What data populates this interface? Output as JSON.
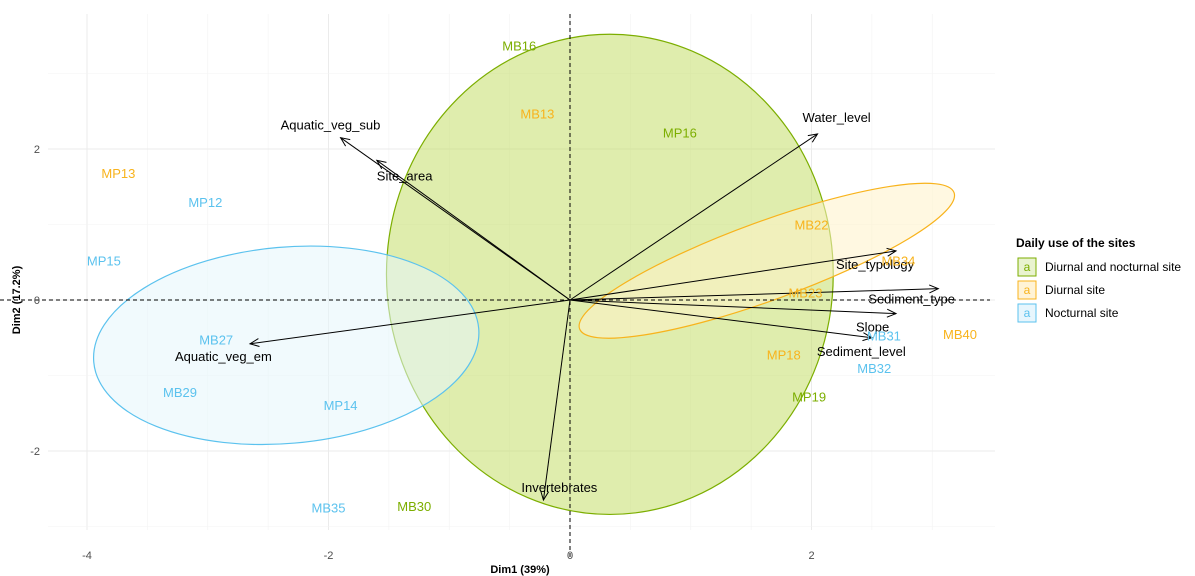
{
  "chart_data": {
    "type": "scatter",
    "subtype": "pca-biplot",
    "xlabel": "Dim1 (39%)",
    "ylabel": "Dim2 (17.2%)",
    "xlim": [
      -4.7,
      3.5
    ],
    "ylim": [
      -3.2,
      3.8
    ],
    "xticks": [
      -4,
      -2,
      0,
      2
    ],
    "yticks": [
      -2,
      0,
      2
    ],
    "grid": true,
    "legend": {
      "title": "Daily use of the sites",
      "placement": "right",
      "entries": [
        {
          "key": "a",
          "label": "Diurnal and nocturnal site",
          "color": "#7cae00"
        },
        {
          "key": "a",
          "label": "Diurnal site",
          "color": "#f8b31c"
        },
        {
          "key": "a",
          "label": "Nocturnal site",
          "color": "#5bc2ee"
        }
      ]
    },
    "groups": [
      {
        "label": "Diurnal and nocturnal site",
        "color": "#7cae00",
        "fill": "#c5de6a",
        "ellipse": {
          "cx": 0.33,
          "cy": 0.34,
          "rx": 1.85,
          "ry": 3.18,
          "angle": 0
        },
        "points": [
          {
            "name": "MB16",
            "x": -0.42,
            "y": 3.37
          },
          {
            "name": "MP16",
            "x": 0.91,
            "y": 2.22
          },
          {
            "name": "MP19",
            "x": 1.98,
            "y": -1.28
          },
          {
            "name": "MB30",
            "x": -1.29,
            "y": -2.73
          }
        ]
      },
      {
        "label": "Diurnal site",
        "color": "#f8b31c",
        "fill": "#fff3c8",
        "ellipse": {
          "cx": 1.63,
          "cy": 0.52,
          "rx": 1.65,
          "ry": 0.52,
          "angle": -20
        },
        "points": [
          {
            "name": "MB13",
            "x": -0.27,
            "y": 2.47
          },
          {
            "name": "MP13",
            "x": -3.74,
            "y": 1.68
          },
          {
            "name": "MB22",
            "x": 2.0,
            "y": 1.0
          },
          {
            "name": "MB23",
            "x": 1.95,
            "y": 0.1
          },
          {
            "name": "MB34",
            "x": 2.72,
            "y": 0.52
          },
          {
            "name": "MB40",
            "x": 3.23,
            "y": -0.45
          },
          {
            "name": "MP18",
            "x": 1.77,
            "y": -0.72
          }
        ]
      },
      {
        "label": "Nocturnal site",
        "color": "#5bc2ee",
        "fill": "#e6f5fc",
        "ellipse": {
          "cx": -2.35,
          "cy": -0.6,
          "rx": 1.6,
          "ry": 1.3,
          "angle": -5
        },
        "points": [
          {
            "name": "MP12",
            "x": -3.02,
            "y": 1.3
          },
          {
            "name": "MP15",
            "x": -3.86,
            "y": 0.52
          },
          {
            "name": "MB27",
            "x": -2.93,
            "y": -0.52
          },
          {
            "name": "MB29",
            "x": -3.23,
            "y": -1.22
          },
          {
            "name": "MP14",
            "x": -1.9,
            "y": -1.39
          },
          {
            "name": "MB35",
            "x": -2.0,
            "y": -2.75
          },
          {
            "name": "MB31",
            "x": 2.6,
            "y": -0.47
          },
          {
            "name": "MB32",
            "x": 2.52,
            "y": -0.9
          }
        ]
      }
    ],
    "variables": [
      {
        "name": "Water_level",
        "x": 2.05,
        "y": 2.2
      },
      {
        "name": "Aquatic_veg_sub",
        "x": -1.9,
        "y": 2.15
      },
      {
        "name": "Site_area",
        "x": -1.6,
        "y": 1.85
      },
      {
        "name": "Site_typology",
        "x": 2.7,
        "y": 0.65
      },
      {
        "name": "Sediment_type",
        "x": 3.05,
        "y": 0.15
      },
      {
        "name": "Slope",
        "x": 2.7,
        "y": -0.18
      },
      {
        "name": "Sediment_level",
        "x": 2.5,
        "y": -0.5
      },
      {
        "name": "Aquatic_veg_em",
        "x": -2.65,
        "y": -0.58
      },
      {
        "name": "Invertebrates",
        "x": -0.22,
        "y": -2.65
      }
    ]
  }
}
